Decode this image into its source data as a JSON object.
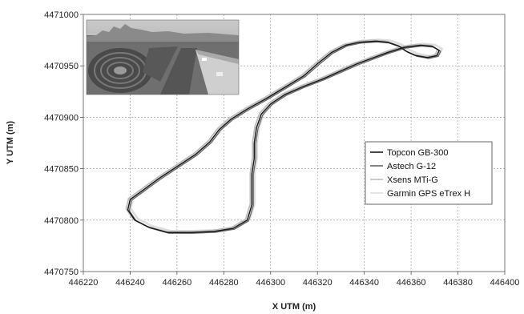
{
  "chart_data": {
    "type": "line",
    "title": "",
    "xlabel": "X UTM (m)",
    "ylabel": "Y UTM (m)",
    "xlim": [
      446220,
      446400
    ],
    "ylim": [
      4470750,
      4471000
    ],
    "xticks": [
      446220,
      446240,
      446260,
      446280,
      446300,
      446320,
      446340,
      446360,
      446380,
      446400
    ],
    "yticks": [
      4470750,
      4470800,
      4470850,
      4470900,
      4470950,
      4471000
    ],
    "xtick_labels": [
      "446220",
      "446240",
      "446260",
      "446280",
      "446300",
      "446320",
      "446340",
      "446360",
      "446380",
      "446400"
    ],
    "ytick_labels": [
      "4470750",
      "4470800",
      "4470850",
      "4470900",
      "4470950",
      "4471000"
    ],
    "grid": true,
    "legend_position": "right",
    "inset_photo": "aerial photo of the test circuit",
    "series": [
      {
        "name": "Topcon GB-300",
        "color": "#1a1a1a",
        "offset": [
          0,
          0
        ]
      },
      {
        "name": "Astech G-12",
        "color": "#666666",
        "offset": [
          0.6,
          -0.8
        ]
      },
      {
        "name": "Xsens MTi-G",
        "color": "#bcbcbc",
        "offset": [
          -0.7,
          0.9
        ]
      },
      {
        "name": "Garmin GPS eTrex H",
        "color": "#dedede",
        "offset": [
          1.2,
          1.5
        ]
      }
    ],
    "track": [
      [
        446278,
        4470888
      ],
      [
        446283,
        4470898
      ],
      [
        446290,
        4470908
      ],
      [
        446298,
        4470918
      ],
      [
        446306,
        4470929
      ],
      [
        446314,
        4470940
      ],
      [
        446320,
        4470952
      ],
      [
        446326,
        4470963
      ],
      [
        446332,
        4470970
      ],
      [
        446338,
        4470973
      ],
      [
        446345,
        4470974
      ],
      [
        446350,
        4470973
      ],
      [
        446355,
        4470969
      ],
      [
        446358,
        4470964
      ],
      [
        446362,
        4470960
      ],
      [
        446367,
        4470958
      ],
      [
        446371,
        4470960
      ],
      [
        446372,
        4470965
      ],
      [
        446369,
        4470969
      ],
      [
        446364,
        4470970
      ],
      [
        446357,
        4470968
      ],
      [
        446350,
        4470963
      ],
      [
        446344,
        4470958
      ],
      [
        446337,
        4470952
      ],
      [
        446330,
        4470945
      ],
      [
        446322,
        4470937
      ],
      [
        446314,
        4470930
      ],
      [
        446306,
        4470922
      ],
      [
        446300,
        4470913
      ],
      [
        446296,
        4470903
      ],
      [
        446294,
        4470890
      ],
      [
        446293,
        4470875
      ],
      [
        446293,
        4470860
      ],
      [
        446292,
        4470845
      ],
      [
        446292,
        4470830
      ],
      [
        446292,
        4470815
      ],
      [
        446290,
        4470800
      ],
      [
        446284,
        4470792
      ],
      [
        446276,
        4470789
      ],
      [
        446266,
        4470788
      ],
      [
        446256,
        4470788
      ],
      [
        446248,
        4470793
      ],
      [
        446242,
        4470800
      ],
      [
        446239,
        4470810
      ],
      [
        446240,
        4470820
      ],
      [
        446246,
        4470830
      ],
      [
        446252,
        4470840
      ],
      [
        446260,
        4470852
      ],
      [
        446268,
        4470864
      ],
      [
        446274,
        4470876
      ],
      [
        446278,
        4470888
      ]
    ]
  }
}
